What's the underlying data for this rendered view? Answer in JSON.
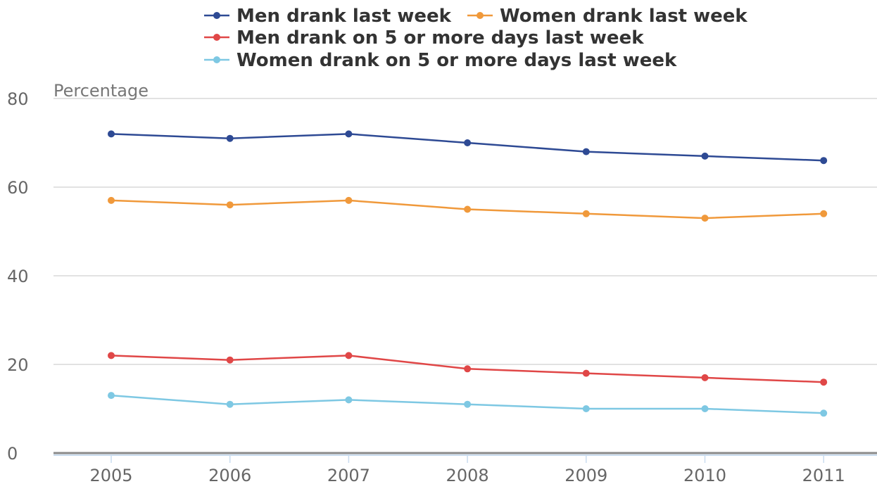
{
  "chart_data": {
    "type": "line",
    "ylabel": "Percentage",
    "ylim": [
      0,
      80
    ],
    "yticks": [
      "0",
      "20",
      "40",
      "60",
      "80"
    ],
    "categories": [
      "2005",
      "2006",
      "2007",
      "2008",
      "2009",
      "2010",
      "2011"
    ],
    "grid": true,
    "legend_position": "top",
    "series": [
      {
        "name": "Men drank last week",
        "color": "#2e4a94",
        "values": [
          72,
          71,
          72,
          70,
          68,
          67,
          66
        ]
      },
      {
        "name": "Women drank last week",
        "color": "#f0993b",
        "values": [
          57,
          56,
          57,
          55,
          54,
          53,
          54
        ]
      },
      {
        "name": "Men drank on 5 or more days last week",
        "color": "#e04747",
        "values": [
          22,
          21,
          22,
          19,
          18,
          17,
          16
        ]
      },
      {
        "name": "Women drank on 5 or more days last week",
        "color": "#7ec8e3",
        "values": [
          13,
          11,
          12,
          11,
          10,
          10,
          9
        ]
      }
    ]
  }
}
